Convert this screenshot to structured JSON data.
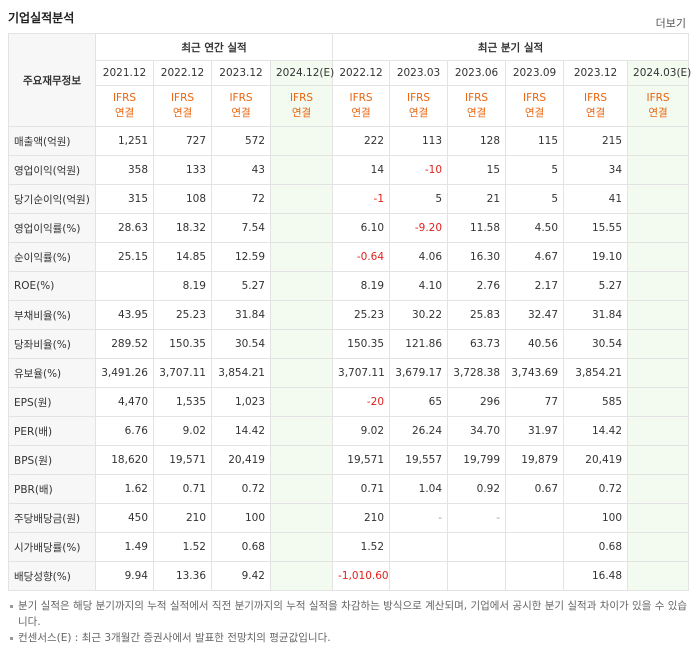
{
  "header": {
    "title": "기업실적분석",
    "more": "더보기"
  },
  "table": {
    "row_header": "주요재무정보",
    "groups": [
      "최근 연간 실적",
      "최근 분기 실적"
    ],
    "periods": [
      "2021.12",
      "2022.12",
      "2023.12",
      "2024.12(E)",
      "2022.12",
      "2023.03",
      "2023.06",
      "2023.09",
      "2023.12",
      "2024.03(E)"
    ],
    "basis": [
      "IFRS",
      "연결"
    ],
    "rows": [
      {
        "label": "매출액(억원)",
        "values": [
          "1,251",
          "727",
          "572",
          null,
          "222",
          "113",
          "128",
          "115",
          "215",
          null
        ]
      },
      {
        "label": "영업이익(억원)",
        "values": [
          "358",
          "133",
          "43",
          null,
          "14",
          "-10",
          "15",
          "5",
          "34",
          null
        ]
      },
      {
        "label": "당기순이익(억원)",
        "values": [
          "315",
          "108",
          "72",
          null,
          "-1",
          "5",
          "21",
          "5",
          "41",
          null
        ]
      },
      {
        "label": "영업이익률(%)",
        "values": [
          "28.63",
          "18.32",
          "7.54",
          null,
          "6.10",
          "-9.20",
          "11.58",
          "4.50",
          "15.55",
          null
        ]
      },
      {
        "label": "순이익률(%)",
        "values": [
          "25.15",
          "14.85",
          "12.59",
          null,
          "-0.64",
          "4.06",
          "16.30",
          "4.67",
          "19.10",
          null
        ]
      },
      {
        "label": "ROE(%)",
        "values": [
          null,
          "8.19",
          "5.27",
          null,
          "8.19",
          "4.10",
          "2.76",
          "2.17",
          "5.27",
          null
        ]
      },
      {
        "label": "부채비율(%)",
        "values": [
          "43.95",
          "25.23",
          "31.84",
          null,
          "25.23",
          "30.22",
          "25.83",
          "32.47",
          "31.84",
          null
        ]
      },
      {
        "label": "당좌비율(%)",
        "values": [
          "289.52",
          "150.35",
          "30.54",
          null,
          "150.35",
          "121.86",
          "63.73",
          "40.56",
          "30.54",
          null
        ]
      },
      {
        "label": "유보율(%)",
        "values": [
          "3,491.26",
          "3,707.11",
          "3,854.21",
          null,
          "3,707.11",
          "3,679.17",
          "3,728.38",
          "3,743.69",
          "3,854.21",
          null
        ]
      },
      {
        "label": "EPS(원)",
        "values": [
          "4,470",
          "1,535",
          "1,023",
          null,
          "-20",
          "65",
          "296",
          "77",
          "585",
          null
        ]
      },
      {
        "label": "PER(배)",
        "values": [
          "6.76",
          "9.02",
          "14.42",
          null,
          "9.02",
          "26.24",
          "34.70",
          "31.97",
          "14.42",
          null
        ]
      },
      {
        "label": "BPS(원)",
        "values": [
          "18,620",
          "19,571",
          "20,419",
          null,
          "19,571",
          "19,557",
          "19,799",
          "19,879",
          "20,419",
          null
        ]
      },
      {
        "label": "PBR(배)",
        "values": [
          "1.62",
          "0.71",
          "0.72",
          null,
          "0.71",
          "1.04",
          "0.92",
          "0.67",
          "0.72",
          null
        ]
      },
      {
        "label": "주당배당금(원)",
        "values": [
          "450",
          "210",
          "100",
          null,
          "210",
          "-",
          "-",
          null,
          "100",
          null
        ]
      },
      {
        "label": "시가배당률(%)",
        "values": [
          "1.49",
          "1.52",
          "0.68",
          null,
          "1.52",
          null,
          null,
          null,
          "0.68",
          null
        ]
      },
      {
        "label": "배당성향(%)",
        "values": [
          "9.94",
          "13.36",
          "9.42",
          null,
          "-1,010.60",
          null,
          null,
          null,
          "16.48",
          null
        ]
      }
    ]
  },
  "notes": [
    "분기 실적은 해당 분기까지의 누적 실적에서 직전 분기까지의 누적 실적을 차감하는 방식으로 계산되며, 기업에서 공시한 분기 실적과 차이가 있을 수 있습니다.",
    "컨센서스(E) : 최근 3개월간 증권사에서 발표한 전망치의 평균값입니다."
  ]
}
